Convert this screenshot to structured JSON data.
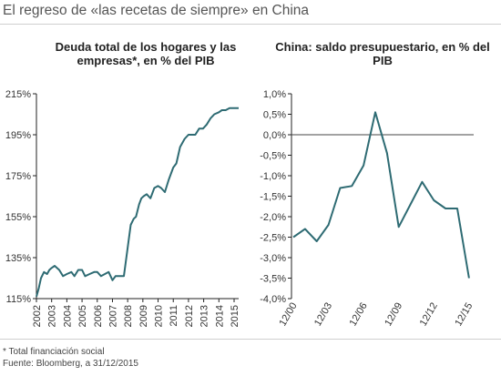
{
  "title": "El regreso de «las recetas de siempre» en China",
  "footnote": "* Total financiación social",
  "source": "Fuente: Bloomberg, a 31/12/2015",
  "colors": {
    "line": "#2e6b73",
    "axis": "#222222",
    "zero_line": "#444444"
  },
  "chart_data": [
    {
      "type": "line",
      "title": "Deuda total de los hogares y las empresas*, en % del PIB",
      "ylim": [
        115,
        215
      ],
      "yticks": [
        115,
        135,
        155,
        175,
        195,
        215
      ],
      "ytick_labels": [
        "115%",
        "135%",
        "155%",
        "175%",
        "195%",
        "215%"
      ],
      "xlim": [
        2002,
        2015.3
      ],
      "xticks": [
        2002,
        2003,
        2004,
        2005,
        2006,
        2007,
        2008,
        2009,
        2010,
        2011,
        2012,
        2013,
        2014,
        2015
      ],
      "xtick_labels": [
        "2002",
        "2003",
        "2004",
        "2005",
        "2006",
        "2007",
        "2008",
        "2009",
        "2010",
        "2011",
        "2012",
        "2013",
        "2014",
        "2015"
      ],
      "series": [
        {
          "x": [
            2002.0,
            2002.15,
            2002.3,
            2002.5,
            2002.7,
            2002.85,
            2003.0,
            2003.2,
            2003.5,
            2003.75,
            2004.0,
            2004.3,
            2004.5,
            2004.75,
            2005.0,
            2005.2,
            2005.5,
            2005.8,
            2006.0,
            2006.25,
            2006.5,
            2006.75,
            2007.0,
            2007.2,
            2007.5,
            2007.75,
            2008.0,
            2008.2,
            2008.4,
            2008.55,
            2008.75,
            2008.9,
            2009.05,
            2009.25,
            2009.5,
            2009.75,
            2010.0,
            2010.2,
            2010.45,
            2010.7,
            2011.0,
            2011.2,
            2011.45,
            2011.75,
            2012.0,
            2012.2,
            2012.45,
            2012.7,
            2012.95,
            2013.2,
            2013.45,
            2013.7,
            2014.0,
            2014.2,
            2014.45,
            2014.7,
            2015.0,
            2015.3
          ],
          "y": [
            116,
            120,
            125,
            128,
            127,
            129,
            130,
            131,
            129,
            126,
            127,
            128,
            126,
            129,
            129,
            126,
            127,
            128,
            128,
            126,
            127,
            128,
            124,
            126,
            126,
            126,
            140,
            151,
            154,
            155,
            161,
            164,
            165,
            166,
            164,
            169,
            170,
            169,
            167,
            173,
            179,
            181,
            189,
            193,
            195,
            195,
            195,
            198,
            198,
            200,
            203,
            205,
            206,
            207,
            207,
            208,
            208,
            208
          ]
        }
      ]
    },
    {
      "type": "line",
      "title": "China: saldo presupuestario, en % del PIB",
      "ylim": [
        -4.0,
        1.0
      ],
      "yticks": [
        1.0,
        0.5,
        0.0,
        -0.5,
        -1.0,
        -1.5,
        -2.0,
        -2.5,
        -3.0,
        -3.5,
        -4.0
      ],
      "ytick_labels": [
        "1,0%",
        "0,5%",
        "0,0%",
        "-0,5%",
        "-1,0%",
        "-1,5%",
        "-2,0%",
        "-2,5%",
        "-3,0%",
        "-3,5%",
        "-4,0%"
      ],
      "xtick_labels": [
        "12/00",
        "12/03",
        "12/06",
        "12/09",
        "12/12",
        "12/15"
      ],
      "series": [
        {
          "x": [
            "12/00",
            "12/01",
            "12/02",
            "12/03",
            "12/04",
            "12/05",
            "12/06",
            "12/07",
            "12/08",
            "12/09",
            "12/10",
            "12/11",
            "12/12",
            "12/13",
            "12/14",
            "12/15"
          ],
          "y": [
            -2.5,
            -2.3,
            -2.6,
            -2.2,
            -1.3,
            -1.25,
            -0.75,
            0.55,
            -0.45,
            -2.25,
            -1.7,
            -1.15,
            -1.6,
            -1.8,
            -1.8,
            -3.5
          ]
        }
      ]
    }
  ]
}
